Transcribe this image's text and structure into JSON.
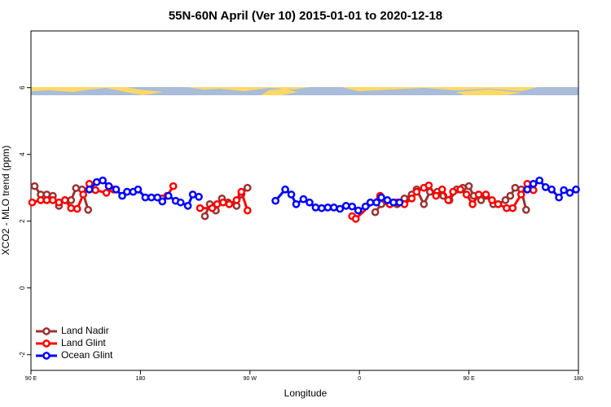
{
  "chart_data": {
    "type": "line",
    "title": "55N-60N April (Ver 10)   2015-01-01 to 2020-12-18",
    "x_label": "Longitude",
    "y_label": "XCO2 - MLO trend (ppm)",
    "xlim": [
      90,
      540
    ],
    "ylim": [
      -2.47,
      7.7
    ],
    "xticks": [
      {
        "value": 90,
        "label": "90 E"
      },
      {
        "value": 180,
        "label": "180"
      },
      {
        "value": 270,
        "label": "90 W"
      },
      {
        "value": 360,
        "label": "0"
      },
      {
        "value": 450,
        "label": "90 E"
      },
      {
        "value": 540,
        "label": "180"
      }
    ],
    "yticks": [
      -2,
      0,
      2,
      4,
      6
    ],
    "legend": "bottom-left",
    "series": [
      {
        "name": "Land Nadir",
        "color": "#993333",
        "x": [
          93,
          98,
          103,
          108,
          113,
          118,
          123,
          127,
          132,
          137,
          180,
          233,
          237,
          242,
          247,
          252,
          259,
          263,
          268,
          300,
          373,
          378,
          385,
          391,
          397,
          403,
          407,
          413,
          418,
          424,
          429,
          434,
          440,
          445,
          450,
          454,
          460,
          464,
          470,
          474,
          480,
          484,
          488,
          493,
          497
        ],
        "values": [
          3.05,
          2.8,
          2.8,
          2.76,
          2.46,
          2.63,
          2.63,
          2.99,
          2.95,
          2.34,
          null,
          2.15,
          2.51,
          2.32,
          2.68,
          2.56,
          2.46,
          2.8,
          3.0,
          null,
          2.27,
          2.51,
          2.51,
          2.51,
          2.68,
          2.8,
          2.95,
          2.51,
          2.88,
          2.88,
          2.76,
          2.63,
          2.95,
          3.0,
          3.05,
          2.76,
          2.63,
          2.76,
          2.51,
          2.51,
          2.63,
          2.76,
          3.0,
          2.95,
          2.34
        ]
      },
      {
        "name": "Land Glint",
        "color": "#ff0000",
        "x": [
          91,
          98,
          103,
          108,
          113,
          118,
          123,
          128,
          133,
          138,
          143,
          152,
          158,
          180,
          198,
          202,
          207,
          218,
          229,
          239,
          243,
          248,
          253,
          259,
          263,
          268,
          300,
          354,
          357,
          377,
          385,
          391,
          397,
          403,
          407,
          413,
          417,
          423,
          428,
          433,
          437,
          443,
          448,
          453,
          458,
          464,
          469,
          474,
          481,
          486,
          493,
          498,
          503
        ],
        "values": [
          2.56,
          2.63,
          2.63,
          2.63,
          2.56,
          2.63,
          2.39,
          2.37,
          2.8,
          3.12,
          2.93,
          2.85,
          2.95,
          null,
          2.68,
          2.76,
          3.05,
          null,
          2.39,
          2.39,
          2.51,
          2.56,
          2.51,
          2.63,
          2.88,
          2.32,
          null,
          2.15,
          2.07,
          2.76,
          2.51,
          2.56,
          2.51,
          2.68,
          2.88,
          3.0,
          3.07,
          2.76,
          2.95,
          2.63,
          2.88,
          2.95,
          2.8,
          2.51,
          2.8,
          2.8,
          2.63,
          2.51,
          2.39,
          2.39,
          2.8,
          3.12,
          2.93
        ]
      },
      {
        "name": "Ocean Glint",
        "color": "#0000ff",
        "x": [
          138,
          144,
          149,
          154,
          160,
          165,
          169,
          174,
          178,
          184,
          189,
          194,
          198,
          203,
          209,
          213,
          219,
          223,
          228,
          260,
          291,
          299,
          304,
          308,
          314,
          319,
          324,
          329,
          334,
          339,
          344,
          349,
          354,
          359,
          365,
          369,
          374,
          378,
          383,
          388,
          393,
          450,
          498,
          503,
          508,
          513,
          518,
          524,
          528,
          533,
          538
        ],
        "values": [
          2.95,
          3.17,
          3.22,
          3.05,
          2.95,
          2.76,
          2.88,
          2.88,
          2.95,
          2.71,
          2.71,
          2.71,
          2.59,
          2.76,
          2.61,
          2.56,
          2.46,
          2.8,
          2.73,
          null,
          2.61,
          2.95,
          2.8,
          2.51,
          2.66,
          2.56,
          2.41,
          2.39,
          2.41,
          2.41,
          2.37,
          2.46,
          2.44,
          2.32,
          2.44,
          2.56,
          2.56,
          2.71,
          2.63,
          2.56,
          2.56,
          null,
          2.95,
          3.12,
          3.22,
          3.02,
          2.95,
          2.71,
          2.93,
          2.85,
          2.95
        ]
      }
    ]
  }
}
